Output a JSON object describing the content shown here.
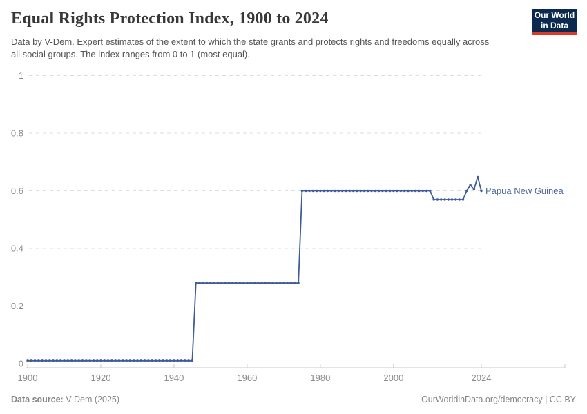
{
  "header": {
    "title": "Equal Rights Protection Index, 1900 to 2024",
    "subtitle": "Data by V-Dem. Expert estimates of the extent to which the state grants and protects rights and freedoms equally across all social groups. The index ranges from 0 to 1 (most equal).",
    "logo": {
      "line1": "Our World",
      "line2": "in Data",
      "bg_color": "#0b2a4e",
      "accent_color": "#dc3a28"
    }
  },
  "footer": {
    "source_label": "Data source:",
    "source_value": " V-Dem (2025)",
    "link": "OurWorldinData.org/democracy",
    "license": " | CC BY"
  },
  "colors": {
    "title_text": "#383838",
    "subtitle_text": "#555555",
    "axis_labels": "#8c8c8c",
    "gridlines": "#dddddd",
    "axis_line": "#c8c8c8",
    "footer_text": "#858585"
  },
  "chart_data": {
    "type": "line",
    "title": "Equal Rights Protection Index, 1900 to 2024",
    "xlabel": "",
    "ylabel": "",
    "xlim": [
      1900,
      2024
    ],
    "ylim": [
      0,
      1
    ],
    "x_ticks": [
      1900,
      1920,
      1940,
      1960,
      1980,
      2000,
      2024
    ],
    "y_ticks": [
      0,
      0.2,
      0.4,
      0.6,
      0.8,
      1
    ],
    "grid": "horizontal-dashed",
    "legend_position": "end-of-line-label",
    "series": [
      {
        "name": "Papua New Guinea",
        "color": "#3e5c96",
        "label_color": "#4c6a9c",
        "marker": "dot-every-year",
        "steps": [
          {
            "from": 1900,
            "to": 1945,
            "value": 0.01
          },
          {
            "from": 1946,
            "to": 1974,
            "value": 0.28
          },
          {
            "from": 1975,
            "to": 2010,
            "value": 0.6
          },
          {
            "from": 2011,
            "to": 2019,
            "value": 0.57
          },
          {
            "from": 2020,
            "to": 2020,
            "value": 0.6
          },
          {
            "from": 2021,
            "to": 2021,
            "value": 0.62
          },
          {
            "from": 2022,
            "to": 2022,
            "value": 0.605
          },
          {
            "from": 2023,
            "to": 2023,
            "value": 0.648
          },
          {
            "from": 2024,
            "to": 2024,
            "value": 0.6
          }
        ]
      }
    ]
  }
}
